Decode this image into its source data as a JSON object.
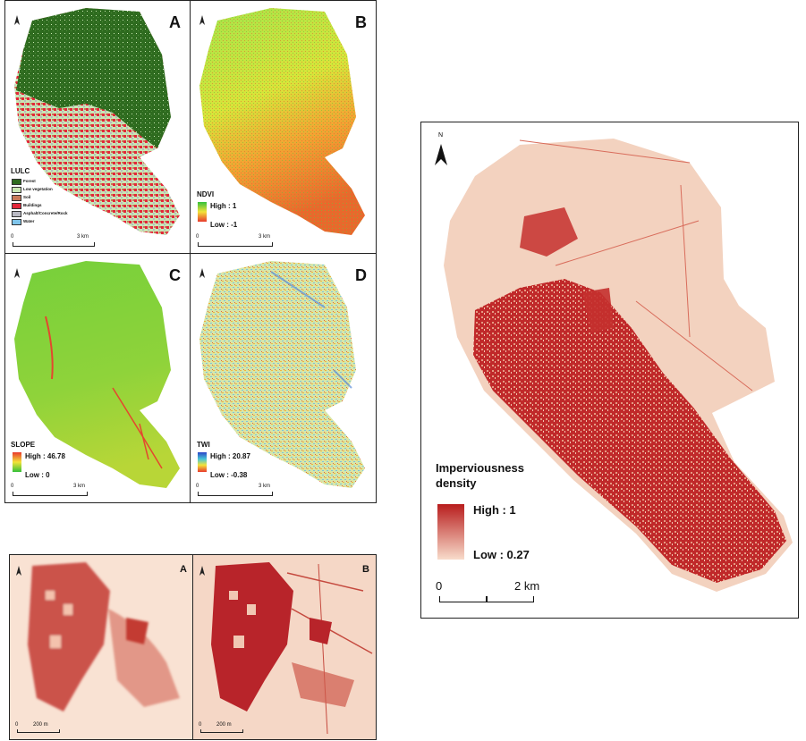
{
  "panel_letters": {
    "a": "A",
    "b": "B",
    "c": "C",
    "d": "D"
  },
  "lulc": {
    "title": "LULC",
    "classes": [
      {
        "label": "Forest",
        "color": "#2e6b1f"
      },
      {
        "label": "Low vegetation",
        "color": "#c9e7b3"
      },
      {
        "label": "Soil",
        "color": "#c87a5a"
      },
      {
        "label": "Buildings",
        "color": "#e3273a"
      },
      {
        "label": "Asphalt/Concrete/Rock",
        "color": "#b9b9c3"
      },
      {
        "label": "Water",
        "color": "#7fc4ea"
      }
    ],
    "scale_start": "0",
    "scale_end": "3 km"
  },
  "ndvi": {
    "title": "NDVI",
    "high": "High : 1",
    "low": "Low : -1",
    "scale_start": "0",
    "scale_end": "3 km"
  },
  "slope": {
    "title": "SLOPE",
    "high": "High : 46.78",
    "low": "Low : 0",
    "scale_start": "0",
    "scale_end": "3 km"
  },
  "twi": {
    "title": "TWI",
    "high": "High : 20.87",
    "low": "Low : -0.38",
    "scale_start": "0",
    "scale_end": "3 km"
  },
  "imperviousness": {
    "title_line1": "Imperviousness",
    "title_line2": "density",
    "high": "High : 1",
    "low": "Low : 0.27",
    "scale_start": "0",
    "scale_end": "2 km",
    "color_high": "#b81d1d",
    "color_low": "#f8dccb"
  },
  "detail": {
    "letter_a": "A",
    "letter_b": "B",
    "scale_start_a": "0",
    "scale_end_a": "200 m",
    "scale_start_b": "0",
    "scale_end_b": "200 m"
  },
  "north_label": "N"
}
